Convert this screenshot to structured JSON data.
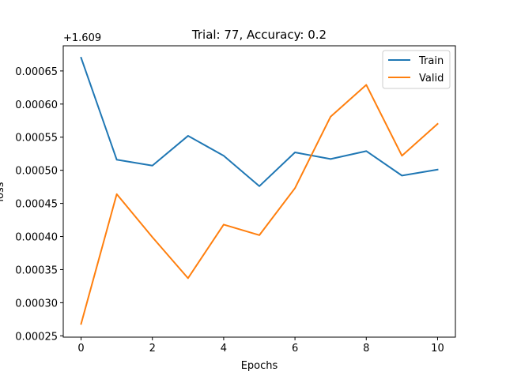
{
  "chart_data": {
    "type": "line",
    "title": "Trial: 77, Accuracy: 0.2",
    "xlabel": "Epochs",
    "ylabel": "loss",
    "y_offset_label": "+1.609",
    "x": [
      0,
      1,
      2,
      3,
      4,
      5,
      6,
      7,
      8,
      9,
      10
    ],
    "xlim": [
      -0.5,
      10.5
    ],
    "ylim": [
      0.000248,
      0.000688
    ],
    "x_ticks": [
      0,
      2,
      4,
      6,
      8,
      10
    ],
    "x_tick_labels": [
      "0",
      "2",
      "4",
      "6",
      "8",
      "10"
    ],
    "y_ticks": [
      0.00025,
      0.0003,
      0.00035,
      0.0004,
      0.00045,
      0.0005,
      0.00055,
      0.0006,
      0.00065
    ],
    "y_tick_labels": [
      "0.00025",
      "0.00030",
      "0.00035",
      "0.00040",
      "0.00045",
      "0.00050",
      "0.00055",
      "0.00060",
      "0.00065"
    ],
    "grid": false,
    "legend_position": "top-right",
    "series": [
      {
        "name": "Train",
        "color": "#1f77b4",
        "values": [
          0.00067,
          0.000516,
          0.000507,
          0.000552,
          0.000522,
          0.000476,
          0.000527,
          0.000517,
          0.000529,
          0.000492,
          0.000501
        ]
      },
      {
        "name": "Valid",
        "color": "#ff7f0e",
        "values": [
          0.000268,
          0.000464,
          0.000399,
          0.000337,
          0.000418,
          0.000402,
          0.000473,
          0.000581,
          0.000629,
          0.000522,
          0.00057
        ]
      }
    ]
  }
}
